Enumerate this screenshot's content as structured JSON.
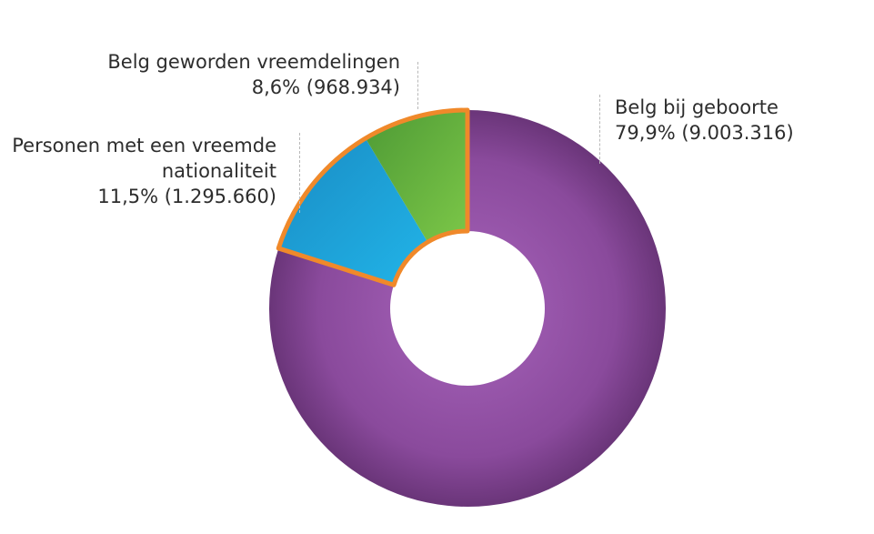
{
  "chart_data": {
    "type": "pie",
    "title": "",
    "slices": [
      {
        "name": "Belg bij geboorte",
        "value_label": "79,9% (9.003.316)",
        "percent": 79.9,
        "count": 9003316,
        "color": "#8a4a9c",
        "highlighted": false
      },
      {
        "name": "Personen met een vreemde nationaliteit",
        "name_lines": [
          "Personen met een vreemde",
          "nationaliteit"
        ],
        "value_label": "11,5% (1.295.660)",
        "percent": 11.5,
        "count": 1295660,
        "color": "#1ea6d9",
        "highlighted": true
      },
      {
        "name": "Belg geworden vreemdelingen",
        "value_label": "8,6% (968.934)",
        "percent": 8.6,
        "count": 968934,
        "color": "#6cba44",
        "highlighted": true
      }
    ],
    "donut": true,
    "start_angle": "12 o'clock",
    "direction": "clockwise",
    "highlight_outline_color": "#f0892a"
  }
}
